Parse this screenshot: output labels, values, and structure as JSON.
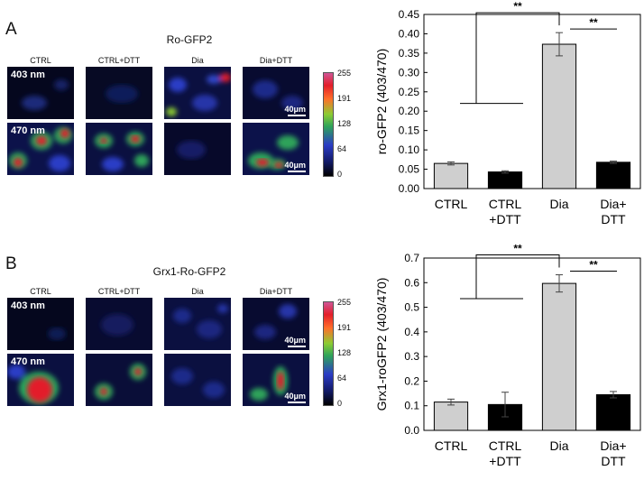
{
  "panelA": {
    "letter": "A",
    "title": "Ro-GFP2",
    "columns": [
      "CTRL",
      "CTRL+DTT",
      "Dia",
      "Dia+DTT"
    ],
    "rows": [
      "403 nm",
      "470 nm"
    ],
    "scalebar": "40μm",
    "colorbar_ticks": [
      "255",
      "191",
      "128",
      "64",
      "0"
    ]
  },
  "panelB": {
    "letter": "B",
    "title": "Grx1-Ro-GFP2",
    "columns": [
      "CTRL",
      "CTRL+DTT",
      "Dia",
      "Dia+DTT"
    ],
    "rows": [
      "403 nm",
      "470 nm"
    ],
    "scalebar": "40μm",
    "colorbar_ticks": [
      "255",
      "191",
      "128",
      "64",
      "0"
    ]
  },
  "colors": {
    "ctrl_bar": "#cfcfcf",
    "dtt_bar": "#000000"
  },
  "chart_data": [
    {
      "type": "bar",
      "ylabel": "ro-GFP2 (403/470)",
      "ylim": [
        0,
        0.45
      ],
      "yticks": [
        "0.00",
        "0.05",
        "0.10",
        "0.15",
        "0.20",
        "0.25",
        "0.30",
        "0.35",
        "0.40",
        "0.45"
      ],
      "categories": [
        "CTRL",
        "CTRL +DTT",
        "Dia",
        "Dia+ DTT"
      ],
      "cat_lines": [
        [
          "CTRL"
        ],
        [
          "CTRL",
          "+DTT"
        ],
        [
          "Dia"
        ],
        [
          "Dia+",
          "DTT"
        ]
      ],
      "values": [
        0.065,
        0.043,
        0.373,
        0.068
      ],
      "errors": [
        0.004,
        0.003,
        0.03,
        0.003
      ],
      "bar_colors": [
        "#cfcfcf",
        "#000000",
        "#cfcfcf",
        "#000000"
      ],
      "annotations": [
        "**",
        "**"
      ]
    },
    {
      "type": "bar",
      "ylabel": "Grx1-roGFP2 (403/470)",
      "ylim": [
        0,
        0.7
      ],
      "yticks": [
        "0.0",
        "0.1",
        "0.2",
        "0.3",
        "0.4",
        "0.5",
        "0.6",
        "0.7"
      ],
      "categories": [
        "CTRL",
        "CTRL +DTT",
        "Dia",
        "Dia+ DTT"
      ],
      "cat_lines": [
        [
          "CTRL"
        ],
        [
          "CTRL",
          "+DTT"
        ],
        [
          "Dia"
        ],
        [
          "Dia+",
          "DTT"
        ]
      ],
      "values": [
        0.115,
        0.105,
        0.597,
        0.145
      ],
      "errors": [
        0.012,
        0.05,
        0.035,
        0.013
      ],
      "bar_colors": [
        "#cfcfcf",
        "#000000",
        "#cfcfcf",
        "#000000"
      ],
      "annotations": [
        "**",
        "**"
      ]
    }
  ]
}
